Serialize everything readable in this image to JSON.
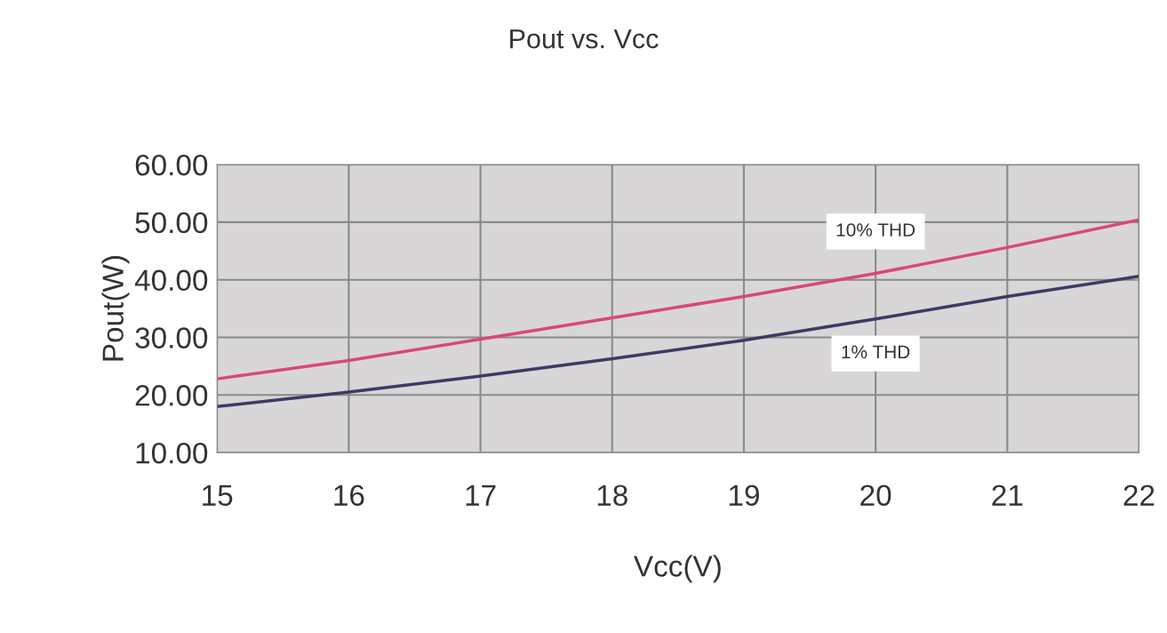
{
  "chart_data": {
    "type": "line",
    "title": "Pout vs. Vcc",
    "xlabel": "Vcc(V)",
    "ylabel": "Pout(W)",
    "x": [
      15,
      16,
      17,
      18,
      19,
      20,
      21,
      22
    ],
    "series": [
      {
        "name": "10% THD",
        "color": "#d8487a",
        "values": [
          22.8,
          26.0,
          29.7,
          33.4,
          37.1,
          41.1,
          45.6,
          50.4
        ]
      },
      {
        "name": "1% THD",
        "color": "#3c3a66",
        "values": [
          18.0,
          20.5,
          23.3,
          26.3,
          29.5,
          33.2,
          37.1,
          40.6
        ]
      }
    ],
    "xlim": [
      15,
      22
    ],
    "xticks": [
      15,
      16,
      17,
      18,
      19,
      20,
      21,
      22
    ],
    "ylim": [
      10,
      60
    ],
    "yticks": [
      {
        "value": 10,
        "label": "10.00"
      },
      {
        "value": 20,
        "label": "20.00"
      },
      {
        "value": 30,
        "label": "30.00"
      },
      {
        "value": 40,
        "label": "40.00"
      },
      {
        "value": 50,
        "label": "50.00"
      },
      {
        "value": 60,
        "label": "60.00"
      }
    ],
    "grid": true,
    "marker": "none",
    "line_style": "solid"
  }
}
